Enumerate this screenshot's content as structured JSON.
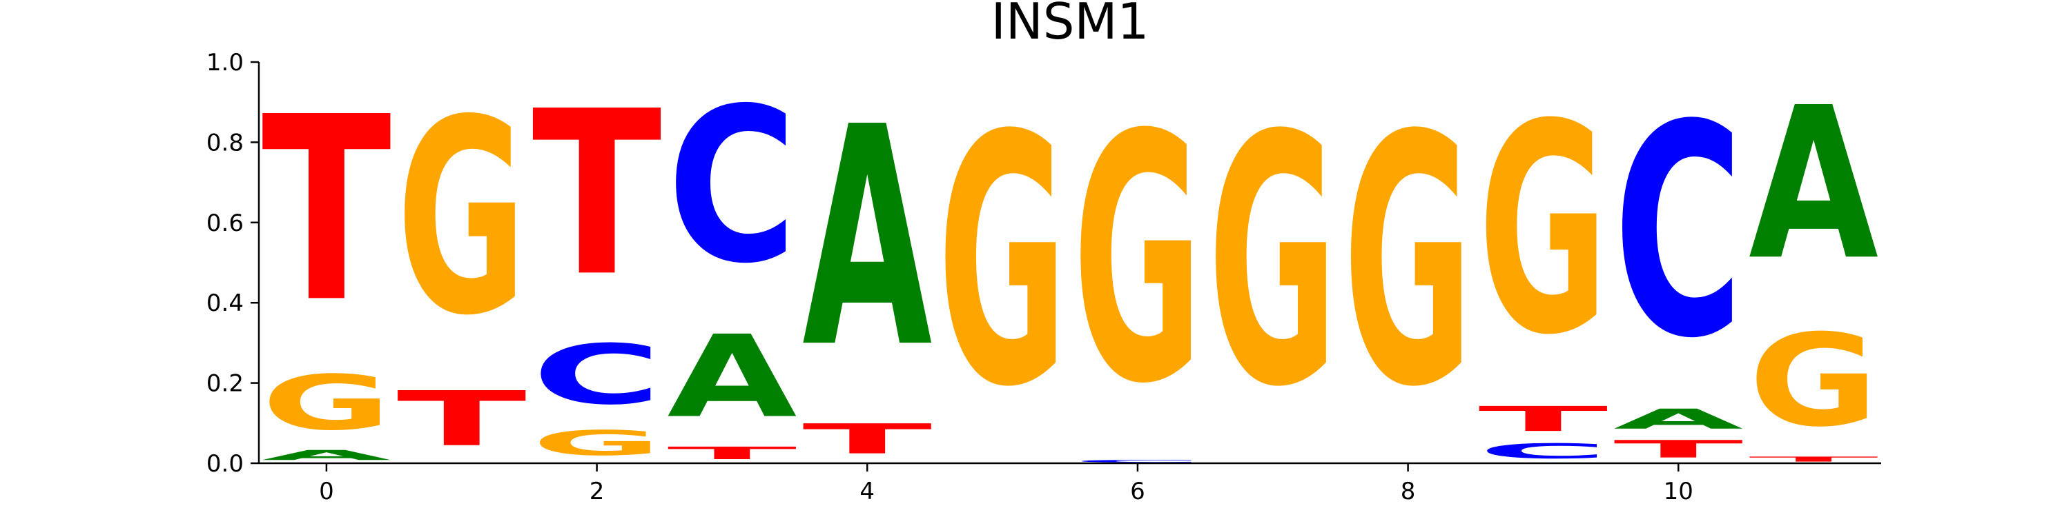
{
  "chart_data": {
    "type": "sequence-logo",
    "title": "INSM1",
    "xlabel": "",
    "ylabel": "",
    "ylim": [
      0,
      1
    ],
    "xlim": [
      -0.5,
      11.5
    ],
    "yticks": [
      "0.0",
      "0.2",
      "0.4",
      "0.6",
      "0.8",
      "1.0"
    ],
    "xticks": [
      "0",
      "2",
      "4",
      "6",
      "8",
      "10"
    ],
    "colors": {
      "A": "#008000",
      "C": "#0000ff",
      "G": "#ffa500",
      "T": "#ff0000"
    },
    "positions": [
      {
        "pos": 0,
        "stack": [
          {
            "base": "A",
            "value": 0.04
          },
          {
            "base": "G",
            "value": 0.22
          },
          {
            "base": "T",
            "value": 0.74
          }
        ]
      },
      {
        "pos": 1,
        "stack": [
          {
            "base": "T",
            "value": 0.22
          },
          {
            "base": "G",
            "value": 0.78
          }
        ]
      },
      {
        "pos": 2,
        "stack": [
          {
            "base": "G",
            "value": 0.1
          },
          {
            "base": "C",
            "value": 0.24
          },
          {
            "base": "T",
            "value": 0.66
          }
        ]
      },
      {
        "pos": 3,
        "stack": [
          {
            "base": "T",
            "value": 0.05
          },
          {
            "base": "A",
            "value": 0.33
          },
          {
            "base": "C",
            "value": 0.62
          }
        ]
      },
      {
        "pos": 4,
        "stack": [
          {
            "base": "T",
            "value": 0.12
          },
          {
            "base": "A",
            "value": 0.88
          }
        ]
      },
      {
        "pos": 5,
        "stack": [
          {
            "base": "G",
            "value": 1.0
          }
        ]
      },
      {
        "pos": 6,
        "stack": [
          {
            "base": "C",
            "value": 0.01
          },
          {
            "base": "G",
            "value": 0.99
          }
        ]
      },
      {
        "pos": 7,
        "stack": [
          {
            "base": "G",
            "value": 1.0
          }
        ]
      },
      {
        "pos": 8,
        "stack": [
          {
            "base": "G",
            "value": 1.0
          }
        ]
      },
      {
        "pos": 9,
        "stack": [
          {
            "base": "C",
            "value": 0.06
          },
          {
            "base": "T",
            "value": 0.1
          },
          {
            "base": "G",
            "value": 0.84
          }
        ]
      },
      {
        "pos": 10,
        "stack": [
          {
            "base": "T",
            "value": 0.07
          },
          {
            "base": "A",
            "value": 0.08
          },
          {
            "base": "C",
            "value": 0.85
          }
        ]
      },
      {
        "pos": 11,
        "stack": [
          {
            "base": "T",
            "value": 0.02
          },
          {
            "base": "G",
            "value": 0.37
          },
          {
            "base": "A",
            "value": 0.61
          }
        ]
      }
    ]
  }
}
